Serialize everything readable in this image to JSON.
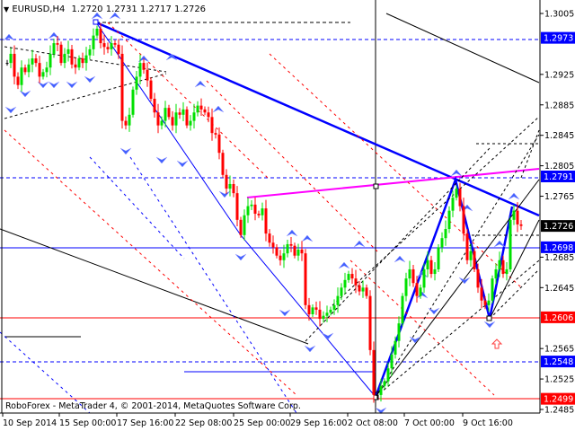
{
  "header": {
    "symbol_timeframe": "EURUSD,H4",
    "ohlc": "1.2720 1.2731 1.2717 1.2726",
    "menu_icon": "triangle-down-icon"
  },
  "copyright": "RoboForex - MetaTrader 4, © 2001-2014, MetaQuotes Software Corp.",
  "colors": {
    "bull": "#00e000",
    "bear": "#ff0000",
    "neutral": "#000000",
    "blue": "#0000ff",
    "red": "#ff0000",
    "magenta": "#ff00ff",
    "current": "#000000"
  },
  "chart_data": {
    "type": "candlestick",
    "ylim": [
      1.2475,
      1.3023
    ],
    "price_ticks": [
      "1.3005",
      "1.2925",
      "1.2885",
      "1.2845",
      "1.2805",
      "1.2765",
      "1.2685",
      "1.2645",
      "1.2565",
      "1.2525",
      "1.2485"
    ],
    "date_ticks": [
      "10 Sep 2014",
      "15 Sep 00:00",
      "17 Sep 16:00",
      "22 Sep 08:00",
      "25 Sep 00:00",
      "29 Sep 16:00",
      "2 Oct 08:00",
      "7 Oct 00:00",
      "9 Oct 16:00"
    ],
    "level_labels": [
      {
        "value": "1.2973",
        "color": "#0000ff"
      },
      {
        "value": "1.2791",
        "color": "#0000ff"
      },
      {
        "value": "1.2726",
        "color": "#000000"
      },
      {
        "value": "1.2698",
        "color": "#0000ff"
      },
      {
        "value": "1.2606",
        "color": "#ff0000"
      },
      {
        "value": "1.2548",
        "color": "#0000ff"
      },
      {
        "value": "1.2499",
        "color": "#ff0000"
      }
    ],
    "closes": [
      1.294,
      1.2952,
      1.2922,
      1.2911,
      1.2934,
      1.2928,
      1.2938,
      1.2946,
      1.294,
      1.2922,
      1.2928,
      1.2934,
      1.2952,
      1.2966,
      1.2964,
      1.294,
      1.2952,
      1.2958,
      1.2938,
      1.2934,
      1.2946,
      1.294,
      1.295,
      1.2958,
      1.2976,
      1.2985,
      1.2966,
      1.2961,
      1.2958,
      1.2966,
      1.2964,
      1.2952,
      1.2864,
      1.2858,
      1.2872,
      1.2905,
      1.2922,
      1.294,
      1.2931,
      1.2917,
      1.2893,
      1.2875,
      1.2858,
      1.2864,
      1.2881,
      1.2869,
      1.2858,
      1.2875,
      1.2872,
      1.2879,
      1.2858,
      1.2864,
      1.2875,
      1.2884,
      1.2879,
      1.2875,
      1.2869,
      1.2848,
      1.2846,
      1.2822,
      1.2793,
      1.2775,
      1.2781,
      1.2769,
      1.2734,
      1.2714,
      1.274,
      1.2752,
      1.2754,
      1.2742,
      1.274,
      1.2749,
      1.2716,
      1.2704,
      1.2698,
      1.2687,
      1.2681,
      1.269,
      1.2702,
      1.27,
      1.2687,
      1.2695,
      1.269,
      1.2622,
      1.261,
      1.2619,
      1.2616,
      1.2604,
      1.2608,
      1.2612,
      1.2616,
      1.2622,
      1.2634,
      1.2645,
      1.2655,
      1.2663,
      1.2657,
      1.2648,
      1.264,
      1.2645,
      1.2634,
      1.2563,
      1.2504,
      1.2504,
      1.2516,
      1.2522,
      1.2539,
      1.2557,
      1.2575,
      1.2598,
      1.2634,
      1.2657,
      1.2669,
      1.2651,
      1.2634,
      1.2645,
      1.2669,
      1.2681,
      1.2663,
      1.2669,
      1.2698,
      1.271,
      1.2722,
      1.2746,
      1.2763,
      1.2775,
      1.2752,
      1.2716,
      1.2681,
      1.2693,
      1.2669,
      1.2645,
      1.2628,
      1.2622,
      1.2628,
      1.2657,
      1.2669,
      1.2681,
      1.2663,
      1.2669,
      1.2734,
      1.2746,
      1.2728,
      1.2726
    ]
  }
}
